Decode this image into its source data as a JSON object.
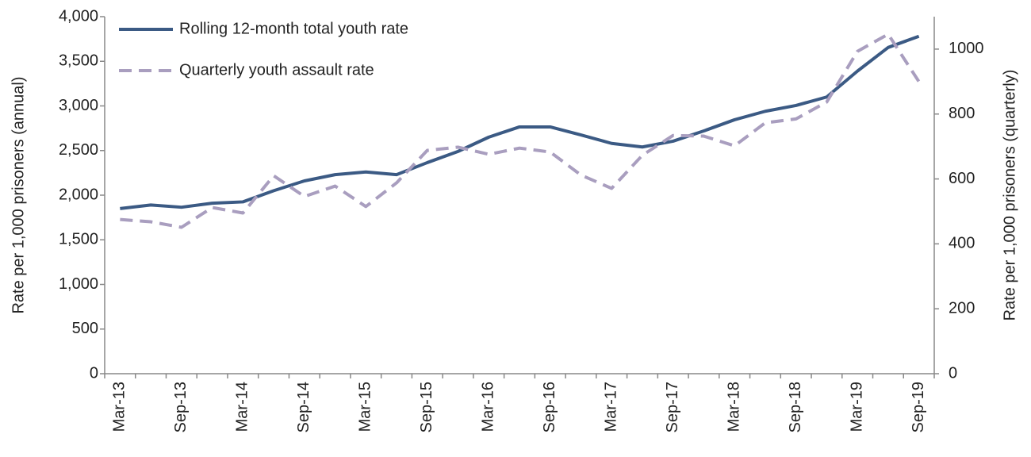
{
  "chart_data": {
    "type": "line",
    "categories": [
      "Mar-13",
      null,
      "Sep-13",
      null,
      "Mar-14",
      null,
      "Sep-14",
      null,
      "Mar-15",
      null,
      "Sep-15",
      null,
      "Mar-16",
      null,
      "Sep-16",
      null,
      "Mar-17",
      null,
      "Sep-17",
      null,
      "Mar-18",
      null,
      "Sep-18",
      null,
      "Mar-19",
      null,
      "Sep-19"
    ],
    "series": [
      {
        "name": "Rolling 12-month total youth rate",
        "color": "#3b5a84",
        "dash": false,
        "values": [
          1850,
          1890,
          1865,
          1910,
          1925,
          2050,
          2160,
          2230,
          2260,
          2230,
          2365,
          2490,
          2650,
          2765,
          2765,
          2675,
          2580,
          2540,
          2605,
          2720,
          2845,
          2940,
          3005,
          3100,
          3390,
          3655,
          3780
        ]
      },
      {
        "name": "Quarterly youth assault rate",
        "color": "#a99ebf",
        "dash": true,
        "axis": "y2",
        "values": [
          475,
          468,
          451,
          512,
          495,
          610,
          546,
          578,
          515,
          588,
          688,
          698,
          676,
          695,
          683,
          612,
          571,
          673,
          734,
          732,
          702,
          773,
          785,
          837,
          993,
          1046,
          900
        ]
      }
    ],
    "ylabel": "Rate per 1,000 prisoners (annual)",
    "y2label": "Rate per 1,000 prisoners (quarterly)",
    "ylim": [
      0,
      4000
    ],
    "yticks": [
      0,
      500,
      {
        "value": 1000,
        "label": "1,000"
      },
      {
        "value": 1500,
        "label": "1,500"
      },
      {
        "value": 2000,
        "label": "2,000"
      },
      {
        "value": 2500,
        "label": "2,500"
      },
      {
        "value": 3000,
        "label": "3,000"
      },
      {
        "value": 3500,
        "label": "3,500"
      },
      {
        "value": 4000,
        "label": "4,000"
      }
    ],
    "y2lim": [
      0,
      1100
    ],
    "y2ticks": [
      0,
      200,
      400,
      600,
      800,
      1000
    ],
    "legend": "top-left"
  }
}
